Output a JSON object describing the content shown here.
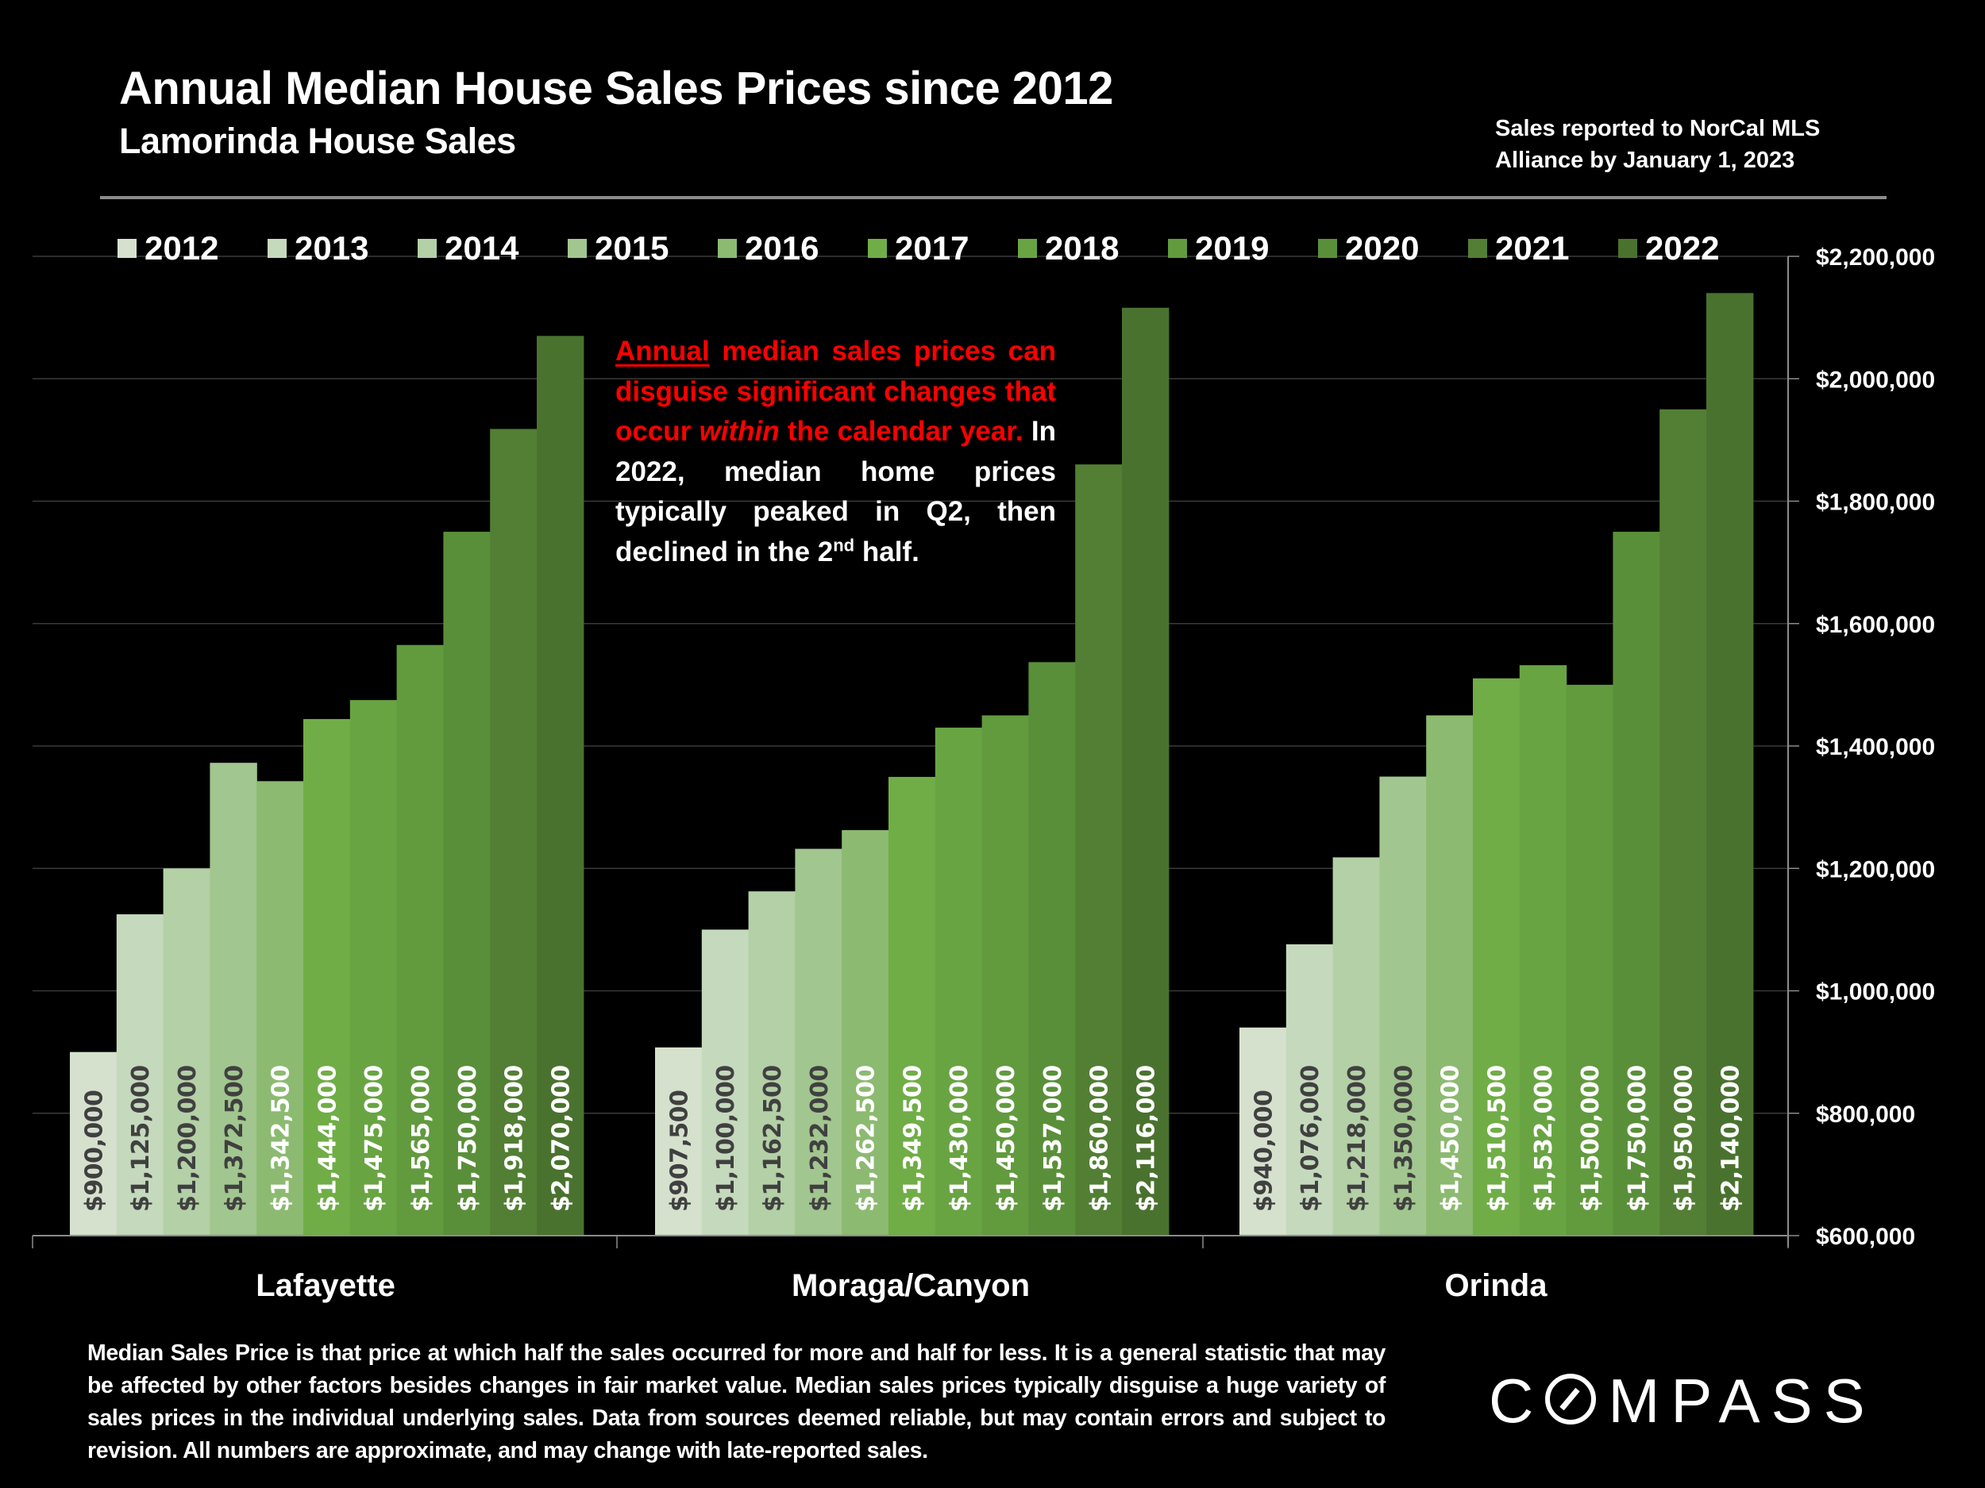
{
  "header": {
    "title": "Annual Median House Sales Prices since 2012",
    "subtitle": "Lamorinda House Sales",
    "source_line1": "Sales reported to NorCal MLS",
    "source_line2": "Alliance by January 1, 2023"
  },
  "annotation": {
    "underlined_word": "Annual",
    "red_text_1": " median sales prices can disguise significant changes that occur ",
    "red_italic": "within",
    "red_text_2": " the calendar year.",
    "white_text_1": " In 2022, median home prices typically peaked in Q2, then declined in the 2",
    "superscript": "nd",
    "white_text_2": " half.",
    "red_color": "#ff0000"
  },
  "footnote": "Median Sales Price is that price at which half the sales occurred for more and half for less. It is a general statistic that may be affected by other factors besides changes in fair market value. Median sales prices typically disguise a huge variety of sales prices in the individual underlying sales. Data from sources deemed reliable, but may contain errors and subject to revision.  All numbers are approximate, and may change with late-reported sales.",
  "logo": {
    "text_before": "C",
    "text_after": "MPASS",
    "icon": "compass-o-icon"
  },
  "chart_data": {
    "type": "bar",
    "title": "Annual Median House Sales Prices since 2012",
    "subtitle": "Lamorinda House Sales",
    "xlabel": "",
    "ylabel": "",
    "categories": [
      "Lafayette",
      "Moraga/Canyon",
      "Orinda"
    ],
    "ylim": [
      600000,
      2200000
    ],
    "yticks": [
      600000,
      800000,
      1000000,
      1200000,
      1400000,
      1600000,
      1800000,
      2000000,
      2200000
    ],
    "ytick_labels": [
      "$600,000",
      "$800,000",
      "$1,000,000",
      "$1,200,000",
      "$1,400,000",
      "$1,600,000",
      "$1,800,000",
      "$2,000,000",
      "$2,200,000"
    ],
    "y_axis_side": "right",
    "grid": true,
    "legend_position": "top",
    "series": [
      {
        "name": "2012",
        "color": "#d5e1cd",
        "label_color": "#404040",
        "values": [
          900000,
          907500,
          940000
        ],
        "labels": [
          "$900,000",
          "$907,500",
          "$940,000"
        ]
      },
      {
        "name": "2013",
        "color": "#c5d9bd",
        "label_color": "#404040",
        "values": [
          1125000,
          1100000,
          1076000
        ],
        "labels": [
          "$1,125,000",
          "$1,100,000",
          "$1,076,000"
        ]
      },
      {
        "name": "2014",
        "color": "#b3d0a6",
        "label_color": "#404040",
        "values": [
          1200000,
          1162500,
          1218000
        ],
        "labels": [
          "$1,200,000",
          "$1,162,500",
          "$1,218,000"
        ]
      },
      {
        "name": "2015",
        "color": "#a2c68f",
        "label_color": "#404040",
        "values": [
          1372500,
          1232000,
          1350000
        ],
        "labels": [
          "$1,372,500",
          "$1,232,000",
          "$1,350,000"
        ]
      },
      {
        "name": "2016",
        "color": "#8cba71",
        "label_color": "#ffffff",
        "values": [
          1342500,
          1262500,
          1450000
        ],
        "labels": [
          "$1,342,500",
          "$1,262,500",
          "$1,450,000"
        ]
      },
      {
        "name": "2017",
        "color": "#70ad47",
        "label_color": "#ffffff",
        "values": [
          1444000,
          1349500,
          1510500
        ],
        "labels": [
          "$1,444,000",
          "$1,349,500",
          "$1,510,500"
        ]
      },
      {
        "name": "2018",
        "color": "#69a443",
        "label_color": "#ffffff",
        "values": [
          1475000,
          1430000,
          1532000
        ],
        "labels": [
          "$1,475,000",
          "$1,430,000",
          "$1,532,000"
        ]
      },
      {
        "name": "2019",
        "color": "#629a3e",
        "label_color": "#ffffff",
        "values": [
          1565000,
          1450000,
          1500000
        ],
        "labels": [
          "$1,565,000",
          "$1,450,000",
          "$1,500,000"
        ]
      },
      {
        "name": "2020",
        "color": "#5a8f3a",
        "label_color": "#ffffff",
        "values": [
          1750000,
          1537000,
          1750000
        ],
        "labels": [
          "$1,750,000",
          "$1,537,000",
          "$1,750,000"
        ]
      },
      {
        "name": "2021",
        "color": "#527f34",
        "label_color": "#ffffff",
        "values": [
          1918000,
          1860000,
          1950000
        ],
        "labels": [
          "$1,918,000",
          "$1,860,000",
          "$1,950,000"
        ]
      },
      {
        "name": "2022",
        "color": "#4a722f",
        "label_color": "#ffffff",
        "values": [
          2070000,
          2116000,
          2140000
        ],
        "labels": [
          "$2,070,000",
          "$2,116,000",
          "$2,140,000"
        ]
      }
    ]
  }
}
